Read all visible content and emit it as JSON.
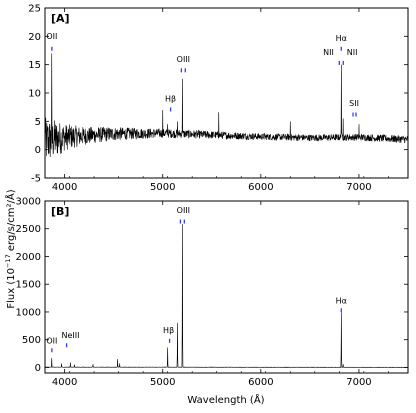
{
  "figure": {
    "ylabel_pre": "Flux (10",
    "ylabel_exp": "−17",
    "ylabel_post": " erg/s/cm²/Å)",
    "xlabel": "Wavelength (Å)"
  },
  "chart_data": [
    {
      "panel": "[A]",
      "type": "line",
      "xlim": [
        3800,
        7500
      ],
      "ylim": [
        -5,
        25
      ],
      "xticks": [
        4000,
        5000,
        6000,
        7000
      ],
      "yticks": [
        -5,
        0,
        5,
        10,
        15,
        20,
        25
      ],
      "grid": false,
      "continuum": [
        [
          3800,
          1.5
        ],
        [
          4000,
          2.2
        ],
        [
          4500,
          2.8
        ],
        [
          5000,
          2.9
        ],
        [
          5500,
          2.6
        ],
        [
          6000,
          2.3
        ],
        [
          6500,
          2.1
        ],
        [
          7000,
          2.2
        ],
        [
          7500,
          1.8
        ]
      ],
      "noise": [
        [
          3800,
          4.2
        ],
        [
          3900,
          3.5
        ],
        [
          4000,
          2.4
        ],
        [
          4200,
          1.6
        ],
        [
          4600,
          1.1
        ],
        [
          5000,
          0.8
        ],
        [
          6000,
          0.6
        ],
        [
          7000,
          0.6
        ],
        [
          7500,
          0.7
        ]
      ],
      "peaks": [
        {
          "x": 3870,
          "y": 17.0
        },
        {
          "x": 5000,
          "y": 7.0
        },
        {
          "x": 5050,
          "y": 4.5
        },
        {
          "x": 5150,
          "y": 5.0
        },
        {
          "x": 5200,
          "y": 12.5
        },
        {
          "x": 5570,
          "y": 6.6
        },
        {
          "x": 6300,
          "y": 5.0
        },
        {
          "x": 6820,
          "y": 15.0
        },
        {
          "x": 6840,
          "y": 5.5
        },
        {
          "x": 7000,
          "y": 4.5
        }
      ],
      "labels": [
        {
          "text": "OII",
          "x": 3870,
          "y": 19.5,
          "marker_y": 17.8,
          "markers": [
            3870
          ]
        },
        {
          "text": "Hβ",
          "x": 5080,
          "y": 8.5,
          "marker_y": 7.1,
          "markers": [
            5080
          ]
        },
        {
          "text": "OIII",
          "x": 5210,
          "y": 15.5,
          "marker_y": 14.0,
          "markers": [
            5190,
            5230
          ]
        },
        {
          "text": "Hα",
          "x": 6820,
          "y": 19.2,
          "marker_y": 17.8,
          "markers": [
            6820
          ]
        },
        {
          "text": "NII",
          "x": 6690,
          "y": 16.7,
          "marker_y": 15.3,
          "markers": [
            6800
          ]
        },
        {
          "text": "NII",
          "x": 6930,
          "y": 16.7,
          "marker_y": 15.3,
          "markers": [
            6840
          ]
        },
        {
          "text": "SII",
          "x": 6950,
          "y": 7.7,
          "marker_y": 6.2,
          "markers": [
            6940,
            6970
          ]
        }
      ]
    },
    {
      "panel": "[B]",
      "type": "line",
      "xlim": [
        3800,
        7500
      ],
      "ylim": [
        -100,
        3000
      ],
      "xticks": [
        4000,
        5000,
        6000,
        7000
      ],
      "yticks": [
        0,
        500,
        1000,
        1500,
        2000,
        2500,
        3000
      ],
      "grid": false,
      "continuum": [
        [
          3800,
          5
        ],
        [
          4500,
          5
        ],
        [
          5000,
          5
        ],
        [
          6000,
          3
        ],
        [
          7500,
          2
        ]
      ],
      "noise": [
        [
          3800,
          3
        ],
        [
          7500,
          3
        ]
      ],
      "peaks": [
        {
          "x": 3870,
          "y": 170
        },
        {
          "x": 3970,
          "y": 70
        },
        {
          "x": 4060,
          "y": 90
        },
        {
          "x": 4100,
          "y": 50
        },
        {
          "x": 4290,
          "y": 60
        },
        {
          "x": 4540,
          "y": 150
        },
        {
          "x": 4560,
          "y": 70
        },
        {
          "x": 5050,
          "y": 360
        },
        {
          "x": 5150,
          "y": 800
        },
        {
          "x": 5200,
          "y": 2580
        },
        {
          "x": 6820,
          "y": 990
        },
        {
          "x": 6840,
          "y": 60
        }
      ],
      "labels": [
        {
          "text": "OII",
          "x": 3870,
          "y": 430,
          "marker_y": 310,
          "markers": [
            3870
          ]
        },
        {
          "text": "NeIII",
          "x": 4060,
          "y": 530,
          "marker_y": 400,
          "markers": [
            4020
          ]
        },
        {
          "text": "Hβ",
          "x": 5060,
          "y": 620,
          "marker_y": 480,
          "markers": [
            5070
          ]
        },
        {
          "text": "OIII",
          "x": 5210,
          "y": 2780,
          "marker_y": 2630,
          "markers": [
            5180,
            5220
          ]
        },
        {
          "text": "Hα",
          "x": 6820,
          "y": 1150,
          "marker_y": 1030,
          "markers": [
            6820
          ]
        }
      ]
    }
  ]
}
